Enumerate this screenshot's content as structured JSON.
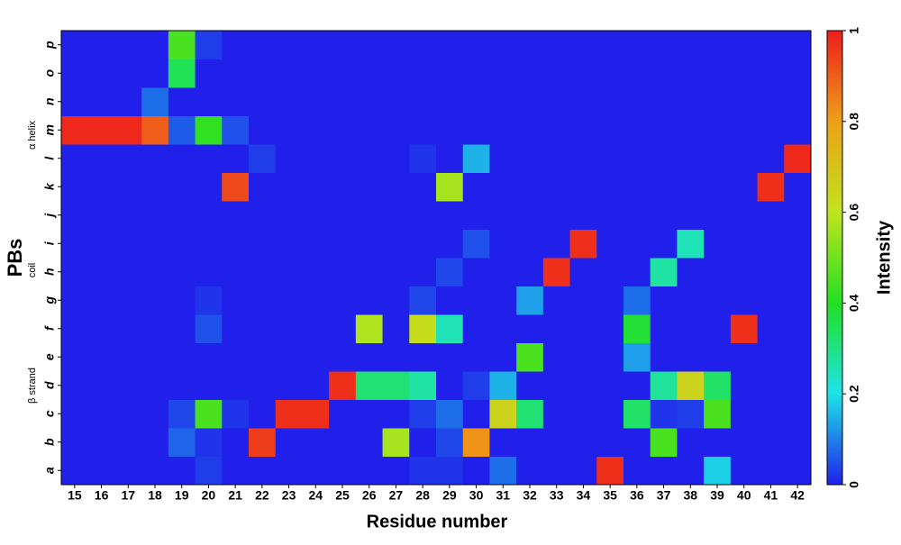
{
  "chart_data": {
    "type": "heatmap",
    "x_title": "Residue number",
    "y_title": "PBs",
    "colorbar_title": "Intensity",
    "x": [
      15,
      16,
      17,
      18,
      19,
      20,
      21,
      22,
      23,
      24,
      25,
      26,
      27,
      28,
      29,
      30,
      31,
      32,
      33,
      34,
      35,
      36,
      37,
      38,
      39,
      40,
      41,
      42
    ],
    "y": [
      "a",
      "b",
      "c",
      "d",
      "e",
      "f",
      "g",
      "h",
      "i",
      "j",
      "k",
      "l",
      "m",
      "n",
      "o",
      "p"
    ],
    "y_group_labels": [
      "α helix",
      "coil",
      "β strand"
    ],
    "z": [
      [
        0,
        0,
        0,
        0,
        0,
        0.03,
        0,
        0,
        0,
        0,
        0,
        0,
        0,
        0.02,
        0.02,
        0,
        0.08,
        0,
        0,
        0,
        0.97,
        0,
        0,
        0,
        0.18,
        0,
        0,
        0
      ],
      [
        0,
        0,
        0,
        0,
        0.07,
        0.02,
        0,
        0.95,
        0,
        0,
        0,
        0,
        0.57,
        0,
        0.04,
        0.82,
        0,
        0,
        0,
        0,
        0,
        0,
        0.45,
        0,
        0,
        0,
        0,
        0
      ],
      [
        0,
        0,
        0,
        0,
        0.04,
        0.45,
        0.02,
        0,
        0.97,
        0.97,
        0,
        0,
        0,
        0.03,
        0.08,
        0,
        0.65,
        0.32,
        0,
        0,
        0,
        0.33,
        0.02,
        0.03,
        0.45,
        0,
        0,
        0
      ],
      [
        0,
        0,
        0,
        0,
        0,
        0,
        0,
        0,
        0,
        0,
        0.97,
        0.32,
        0.32,
        0.27,
        0,
        0.03,
        0.15,
        0,
        0,
        0,
        0,
        0,
        0.28,
        0.65,
        0.33,
        0,
        0,
        0
      ],
      [
        0,
        0,
        0,
        0,
        0,
        0,
        0,
        0,
        0,
        0,
        0,
        0,
        0,
        0,
        0,
        0,
        0,
        0.45,
        0,
        0,
        0,
        0.13,
        0,
        0,
        0,
        0,
        0,
        0
      ],
      [
        0,
        0,
        0,
        0,
        0,
        0.05,
        0,
        0,
        0,
        0,
        0,
        0.58,
        0,
        0.62,
        0.25,
        0,
        0,
        0,
        0,
        0,
        0,
        0.38,
        0,
        0,
        0,
        0.97,
        0,
        0
      ],
      [
        0,
        0,
        0,
        0,
        0,
        0.02,
        0,
        0,
        0,
        0,
        0,
        0,
        0,
        0.04,
        0,
        0,
        0,
        0.13,
        0,
        0,
        0,
        0.08,
        0,
        0,
        0,
        0,
        0,
        0
      ],
      [
        0,
        0,
        0,
        0,
        0,
        0,
        0,
        0,
        0,
        0,
        0,
        0,
        0,
        0,
        0.04,
        0,
        0,
        0,
        0.97,
        0,
        0,
        0,
        0.27,
        0,
        0,
        0,
        0,
        0
      ],
      [
        0,
        0,
        0,
        0,
        0,
        0,
        0,
        0,
        0,
        0,
        0,
        0,
        0,
        0,
        0,
        0.05,
        0,
        0,
        0,
        0.97,
        0,
        0,
        0,
        0.25,
        0,
        0,
        0,
        0
      ],
      [
        0,
        0,
        0,
        0,
        0,
        0,
        0,
        0,
        0,
        0,
        0,
        0,
        0,
        0,
        0,
        0,
        0,
        0,
        0,
        0,
        0,
        0,
        0,
        0,
        0,
        0,
        0,
        0
      ],
      [
        0,
        0,
        0,
        0,
        0,
        0,
        0.93,
        0,
        0,
        0,
        0,
        0,
        0,
        0,
        0.57,
        0,
        0,
        0,
        0,
        0,
        0,
        0,
        0,
        0,
        0,
        0,
        0.97,
        0
      ],
      [
        0,
        0,
        0,
        0,
        0,
        0,
        0,
        0.03,
        0,
        0,
        0,
        0,
        0,
        0.02,
        0,
        0.15,
        0,
        0,
        0,
        0,
        0,
        0,
        0,
        0,
        0,
        0,
        0,
        0.98
      ],
      [
        0.98,
        0.98,
        0.98,
        0.9,
        0.06,
        0.42,
        0.05,
        0,
        0,
        0,
        0,
        0,
        0,
        0,
        0,
        0,
        0,
        0,
        0,
        0,
        0,
        0,
        0,
        0,
        0,
        0,
        0,
        0
      ],
      [
        0,
        0,
        0,
        0.08,
        0,
        0,
        0,
        0,
        0,
        0,
        0,
        0,
        0,
        0,
        0,
        0,
        0,
        0,
        0,
        0,
        0,
        0,
        0,
        0,
        0,
        0,
        0,
        0
      ],
      [
        0,
        0,
        0,
        0,
        0.35,
        0,
        0,
        0,
        0,
        0,
        0,
        0,
        0,
        0,
        0,
        0,
        0,
        0,
        0,
        0,
        0,
        0,
        0,
        0,
        0,
        0,
        0,
        0
      ],
      [
        0,
        0,
        0,
        0,
        0.45,
        0.03,
        0,
        0,
        0,
        0,
        0,
        0,
        0,
        0,
        0,
        0,
        0,
        0,
        0,
        0,
        0,
        0,
        0,
        0,
        0,
        0,
        0,
        0
      ]
    ],
    "zlim": [
      0,
      1
    ],
    "zticks": [
      0,
      0.2,
      0.4,
      0.6,
      0.8,
      1
    ],
    "colormap": [
      "#2020ea",
      "#1ee3e8",
      "#22e022",
      "#c0e41e",
      "#eea018",
      "#ee1c1c"
    ]
  }
}
